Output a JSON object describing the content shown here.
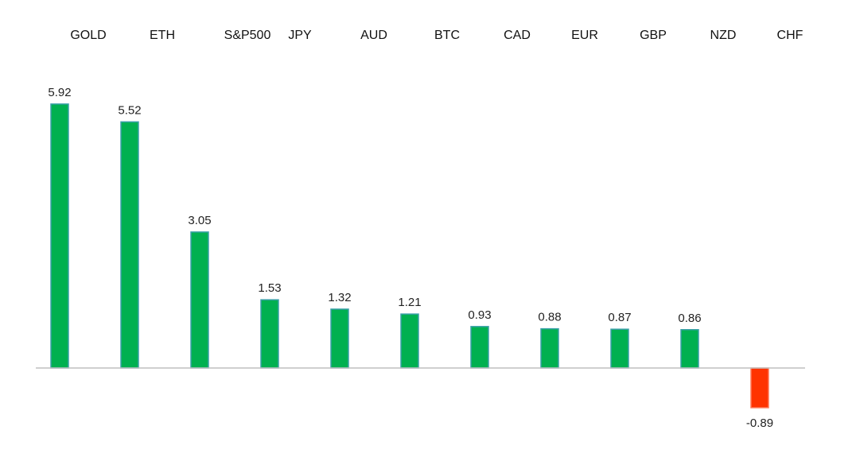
{
  "chart_data": {
    "type": "bar",
    "title": "",
    "xlabel": "",
    "ylabel": "",
    "categories": [
      "GOLD",
      "ETH",
      "S&P500",
      "JPY",
      "AUD",
      "BTC",
      "CAD",
      "EUR",
      "GBP",
      "NZD",
      "CHF"
    ],
    "values": [
      5.92,
      5.52,
      3.05,
      1.53,
      1.32,
      1.21,
      0.93,
      0.88,
      0.87,
      0.86,
      -0.89
    ],
    "value_labels": [
      "5.92",
      "5.52",
      "3.05",
      "1.53",
      "1.32",
      "1.21",
      "0.93",
      "0.88",
      "0.87",
      "0.86",
      "-0.89"
    ],
    "ylim": [
      -1.6,
      6.0
    ],
    "grid": false,
    "legend": "none",
    "colors": {
      "positive": "#00b050",
      "positive_edge": "#3aa0a8",
      "negative": "#ff3300",
      "negative_edge": "#ff7755",
      "axis": "#bfbfbf"
    }
  }
}
